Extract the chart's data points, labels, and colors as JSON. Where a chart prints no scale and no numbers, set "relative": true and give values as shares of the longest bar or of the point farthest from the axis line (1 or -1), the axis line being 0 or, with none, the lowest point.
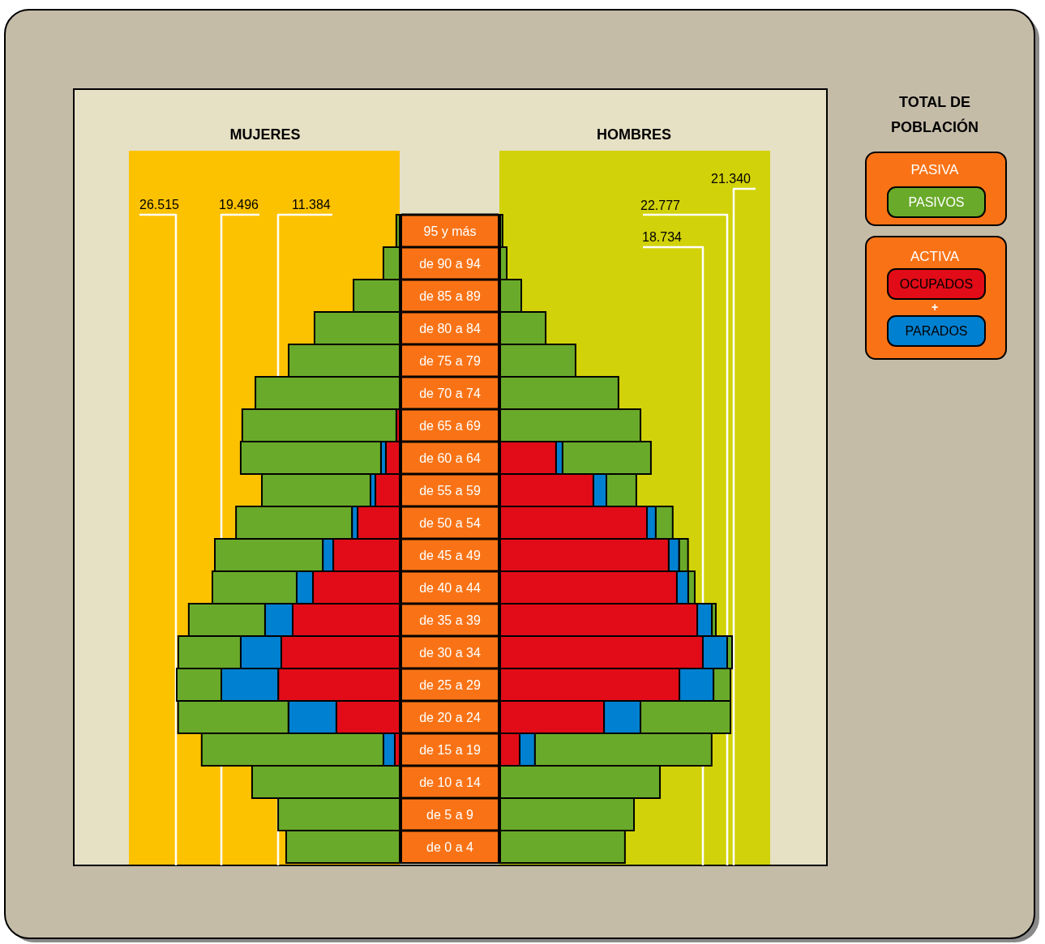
{
  "chart_data": [
    {
      "type": "bar",
      "orientation": "horizontal",
      "stacked": true,
      "relative": true,
      "title": "MUJERES",
      "tick_labels": false,
      "annotations": [
        "26.515",
        "19.496",
        "11.384"
      ],
      "categories": [
        "95 y más",
        "de 90 a 94",
        "de 85 a 89",
        "de 80 a 84",
        "de 75 a 79",
        "de 70 a 74",
        "de 65 a 69",
        "de 60 a 64",
        "de 55 a 59",
        "de 50 a 54",
        "de 45 a 49",
        "de 40 a 44",
        "de 35 a 39",
        "de 30 a 34",
        "de 25 a 29",
        "de 20 a 24",
        "de 15 a 19",
        "de 10 a 14",
        "de 5 a 9",
        "de 0 a 4"
      ],
      "series": [
        {
          "color": "#e10c17",
          "values": [
            null,
            null,
            null,
            null,
            null,
            null,
            -0.015,
            -0.062,
            -0.109,
            -0.189,
            -0.298,
            -0.389,
            -0.48,
            -0.531,
            -0.545,
            -0.284,
            -0.022,
            null,
            null,
            null
          ]
        },
        {
          "color": "#0080d0",
          "values": [
            null,
            null,
            null,
            null,
            null,
            null,
            null,
            -0.022,
            -0.022,
            -0.025,
            -0.047,
            -0.073,
            -0.124,
            -0.182,
            -0.255,
            -0.215,
            -0.051,
            null,
            null,
            null
          ]
        },
        {
          "color": "#6aaa2a",
          "values": [
            -0.015,
            -0.073,
            -0.207,
            -0.382,
            -0.498,
            -0.647,
            -0.691,
            -0.629,
            -0.487,
            -0.52,
            -0.484,
            -0.378,
            -0.342,
            -0.28,
            -0.2,
            -0.495,
            -0.815,
            -0.662,
            -0.545,
            -0.509
          ]
        }
      ]
    },
    {
      "type": "bar",
      "orientation": "horizontal",
      "stacked": true,
      "relative": true,
      "title": "HOMBRES",
      "legend": "right",
      "legend_title": "TOTAL DE POBLACIÓN",
      "annotations": [
        "PASIVA",
        "ACTIVA",
        "+",
        "21.340",
        "22.777",
        "18.734"
      ],
      "categories": [
        "95 y más",
        "de 90 a 94",
        "de 85 a 89",
        "de 80 a 84",
        "de 75 a 79",
        "de 70 a 74",
        "de 65 a 69",
        "de 60 a 64",
        "de 55 a 59",
        "de 50 a 54",
        "de 45 a 49",
        "de 40 a 44",
        "de 35 a 39",
        "de 30 a 34",
        "de 25 a 29",
        "de 20 a 24",
        "de 15 a 19",
        "de 10 a 14",
        "de 5 a 9",
        "de 0 a 4"
      ],
      "series": [
        {
          "name": "OCUPADOS",
          "color": "#e10c17",
          "values": [
            null,
            null,
            null,
            null,
            null,
            null,
            null,
            0.241,
            0.402,
            0.633,
            0.727,
            0.762,
            0.85,
            0.874,
            0.773,
            0.448,
            0.084,
            null,
            null,
            null
          ]
        },
        {
          "name": "PARADOS",
          "color": "#0080d0",
          "values": [
            null,
            null,
            null,
            null,
            null,
            null,
            null,
            0.028,
            0.056,
            0.038,
            0.045,
            0.049,
            0.063,
            0.105,
            0.147,
            0.157,
            0.066,
            null,
            null,
            null
          ]
        },
        {
          "name": "PASIVOS",
          "color": "#6aaa2a",
          "values": [
            0.01,
            0.028,
            0.091,
            0.196,
            0.325,
            0.51,
            0.605,
            0.381,
            0.129,
            0.073,
            0.038,
            0.028,
            0.017,
            0.021,
            0.073,
            0.388,
            0.762,
            0.689,
            0.577,
            0.538
          ]
        }
      ]
    }
  ]
}
